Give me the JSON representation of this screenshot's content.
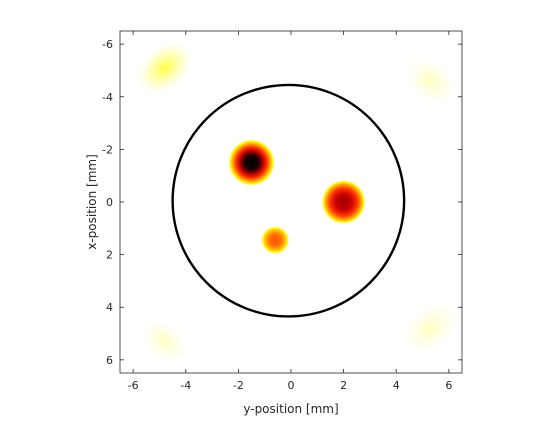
{
  "chart_data": {
    "type": "heatmap",
    "title": "",
    "xlabel": "y-position [mm]",
    "ylabel": "x-position [mm]",
    "xlim": [
      -6.5,
      6.5
    ],
    "ylim": [
      -6.5,
      6.5
    ],
    "y_axis_direction": "reversed (negative at top)",
    "x_ticks": [
      -6,
      -4,
      -2,
      0,
      2,
      4,
      6
    ],
    "y_ticks": [
      -6,
      -4,
      -2,
      0,
      2,
      4,
      6
    ],
    "x_tick_labels": [
      "-6",
      "-4",
      "-2",
      "0",
      "2",
      "4",
      "6"
    ],
    "y_tick_labels": [
      "-6",
      "-4",
      "-2",
      "0",
      "2",
      "4",
      "6"
    ],
    "grid": false,
    "colormap": "hot (inverted: white = low, black = high)",
    "boundary_circle": {
      "center_y_mm": -0.1,
      "center_x_mm": -0.05,
      "radius_mm": 4.4,
      "color": "#000000"
    },
    "features": [
      {
        "kind": "inclusion",
        "y_mm": -1.5,
        "x_mm": -1.5,
        "radius_mm": 0.9,
        "intensity": 1.0
      },
      {
        "kind": "inclusion",
        "y_mm": 2.0,
        "x_mm": 0.0,
        "radius_mm": 0.85,
        "intensity": 0.82
      },
      {
        "kind": "inclusion",
        "y_mm": -0.6,
        "x_mm": 1.45,
        "radius_mm": 0.55,
        "intensity": 0.5
      },
      {
        "kind": "artifact",
        "y_mm": -4.8,
        "x_mm": -5.1,
        "radius_mm": 1.2,
        "intensity": 0.16
      },
      {
        "kind": "artifact",
        "y_mm": 5.3,
        "x_mm": -4.6,
        "radius_mm": 1.1,
        "intensity": 0.06
      },
      {
        "kind": "artifact",
        "y_mm": -4.8,
        "x_mm": 5.3,
        "radius_mm": 1.0,
        "intensity": 0.05
      },
      {
        "kind": "artifact",
        "y_mm": 5.3,
        "x_mm": 4.8,
        "radius_mm": 1.2,
        "intensity": 0.08
      }
    ]
  }
}
